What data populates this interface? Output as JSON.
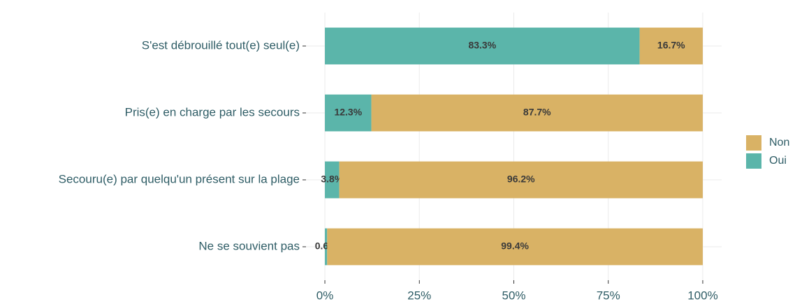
{
  "chart_data": {
    "type": "stacked_barh",
    "categories": [
      "S'est débrouillé tout(e) seul(e)",
      "Pris(e) en charge par les secours",
      "Secouru(e) par quelqu'un présent sur la plage",
      "Ne se souvient pas"
    ],
    "series": [
      {
        "name": "Oui",
        "color": "#5bb5aa",
        "values": [
          83.3,
          12.3,
          3.8,
          0.6
        ],
        "value_labels": [
          "83.3%",
          "12.3%",
          "3.8%",
          "0.6%"
        ]
      },
      {
        "name": "Non",
        "color": "#d9b265",
        "values": [
          16.7,
          87.7,
          96.2,
          99.4
        ],
        "value_labels": [
          "16.7%",
          "87.7%",
          "96.2%",
          "99.4%"
        ]
      }
    ],
    "xlim": [
      -5,
      105
    ],
    "xticks": [
      {
        "value": 0,
        "label": "0%"
      },
      {
        "value": 25,
        "label": "25%"
      },
      {
        "value": 50,
        "label": "50%"
      },
      {
        "value": 75,
        "label": "75%"
      },
      {
        "value": 100,
        "label": "100%"
      }
    ],
    "grid": true,
    "legend": "right"
  }
}
